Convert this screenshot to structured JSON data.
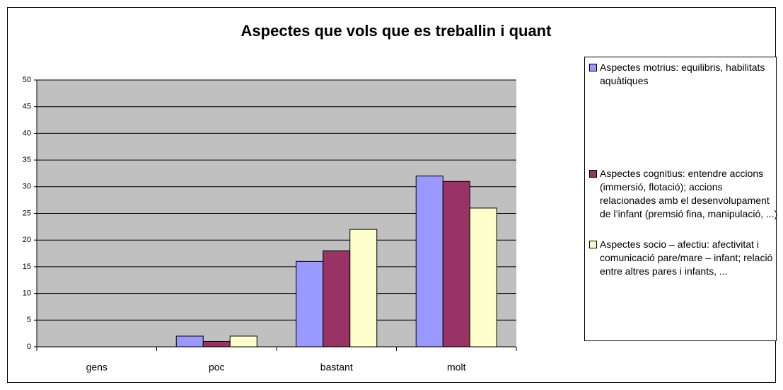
{
  "chart_data": {
    "type": "bar",
    "title": "Aspectes que vols que es treballin i quant",
    "categories": [
      "gens",
      "poc",
      "bastant",
      "molt"
    ],
    "series": [
      {
        "name": "Aspectes motrius: equilibris, habilitats aquàtiques",
        "color": "#9999ff",
        "values": [
          0,
          2,
          16,
          32
        ]
      },
      {
        "name": "Aspectes cognitius: entendre accions (immersió, flotació); accions relacionades amb el desenvolupament de l’infant (premsió fina, manipulació, ...)",
        "color": "#993366",
        "values": [
          0,
          1,
          18,
          31
        ]
      },
      {
        "name": "Aspectes socio – afectiu: afectivitat i comunicació pare/mare – infant; relació entre altres pares i infants, ...",
        "color": "#ffffcc",
        "values": [
          0,
          2,
          22,
          26
        ]
      }
    ],
    "ylim": [
      0,
      50
    ],
    "yticks": [
      0,
      5,
      10,
      15,
      20,
      25,
      30,
      35,
      40,
      45,
      50
    ],
    "grid": true
  }
}
